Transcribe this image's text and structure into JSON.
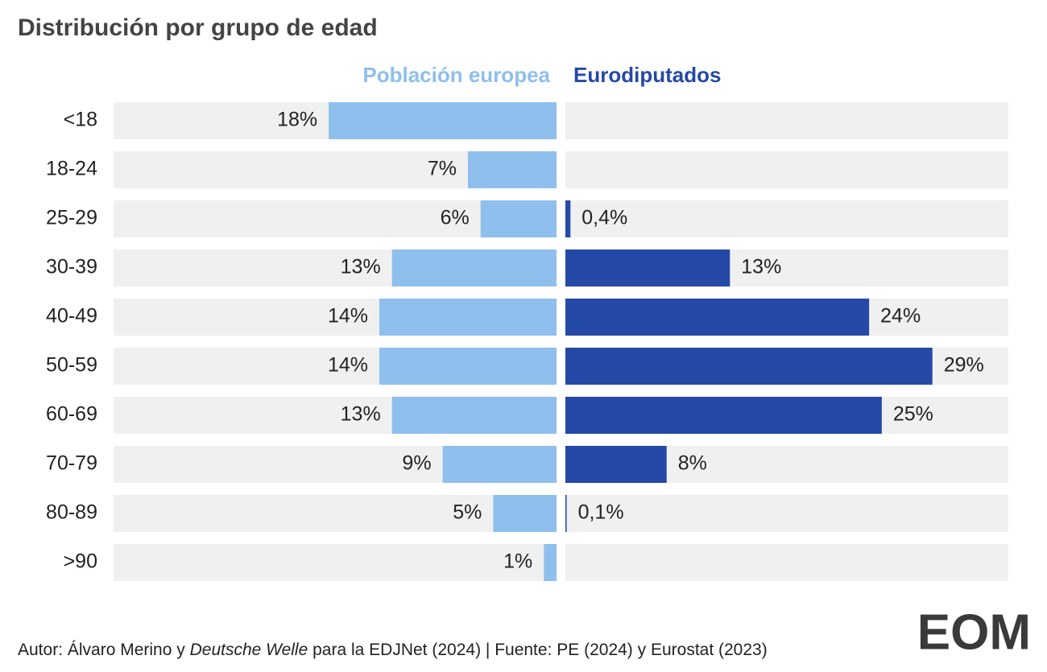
{
  "chart_data": {
    "type": "diverging-bar",
    "title": "Distribución por grupo de edad",
    "categories": [
      "<18",
      "18-24",
      "25-29",
      "30-39",
      "40-49",
      "50-59",
      "60-69",
      "70-79",
      "80-89",
      ">90"
    ],
    "series": [
      {
        "name": "Población europea",
        "color": "#8fbfec",
        "side": "left",
        "values": [
          18,
          7,
          6,
          13,
          14,
          14,
          13,
          9,
          5,
          1
        ],
        "value_labels": [
          "18%",
          "7%",
          "6%",
          "13%",
          "14%",
          "14%",
          "13%",
          "9%",
          "5%",
          "1%"
        ]
      },
      {
        "name": "Eurodiputados",
        "color": "#2549a6",
        "side": "right",
        "values": [
          null,
          null,
          0.4,
          13,
          24,
          29,
          25,
          8,
          0.1,
          null
        ],
        "value_labels": [
          null,
          null,
          "0,4%",
          "13%",
          "24%",
          "29%",
          "25%",
          "8%",
          "0,1%",
          null
        ]
      }
    ],
    "xlim": [
      0,
      35
    ]
  },
  "footer": {
    "author_prefix": "Autor: Álvaro Merino y",
    "author_italic": "Deutsche Welle",
    "author_suffix": "para la EDJNet (2024)",
    "source": "| Fuente: PE (2024) y Eurostat (2023)",
    "logo": "EOM"
  }
}
